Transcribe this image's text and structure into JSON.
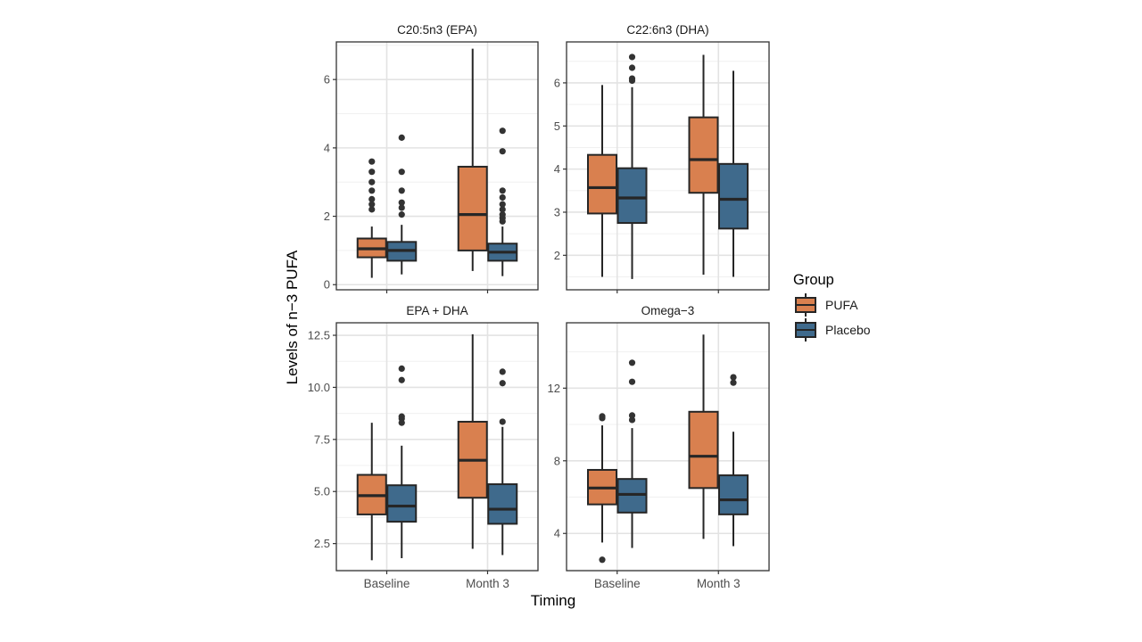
{
  "figure": {
    "xlabel": "Timing",
    "ylabel": "Levels of n−3 PUFA",
    "legend": {
      "title": "Group",
      "placement": "right",
      "items": [
        {
          "label": "PUFA",
          "color": "#d9804f"
        },
        {
          "label": "Placebo",
          "color": "#3f6a8c"
        }
      ]
    }
  },
  "chart_data": [
    {
      "type": "box",
      "title": "C20:5n3 (EPA)",
      "categories": [
        "Baseline",
        "Month 3"
      ],
      "ylim": [
        -0.15,
        7.1
      ],
      "yticks": [
        0,
        2,
        4,
        6
      ],
      "ytick_labels": [
        "0",
        "2",
        "4",
        "6"
      ],
      "series": [
        {
          "name": "PUFA",
          "boxes": [
            {
              "min": 0.2,
              "q1": 0.8,
              "median": 1.05,
              "q3": 1.35,
              "max": 1.7,
              "outliers": [
                2.2,
                2.35,
                2.5,
                2.75,
                3.0,
                3.3,
                3.6
              ]
            },
            {
              "min": 0.4,
              "q1": 1.0,
              "median": 2.05,
              "q3": 3.45,
              "max": 6.9,
              "outliers": []
            }
          ]
        },
        {
          "name": "Placebo",
          "boxes": [
            {
              "min": 0.3,
              "q1": 0.7,
              "median": 1.0,
              "q3": 1.25,
              "max": 1.75,
              "outliers": [
                2.05,
                2.25,
                2.4,
                2.75,
                3.3,
                4.3
              ]
            },
            {
              "min": 0.25,
              "q1": 0.7,
              "median": 0.95,
              "q3": 1.2,
              "max": 1.7,
              "outliers": [
                1.85,
                1.95,
                2.05,
                2.2,
                2.35,
                2.55,
                2.75,
                3.9,
                4.5
              ]
            }
          ]
        }
      ]
    },
    {
      "type": "box",
      "title": "C22:6n3 (DHA)",
      "categories": [
        "Baseline",
        "Month 3"
      ],
      "ylim": [
        1.2,
        6.95
      ],
      "yticks": [
        2,
        3,
        4,
        5,
        6
      ],
      "ytick_labels": [
        "2",
        "3",
        "4",
        "5",
        "6"
      ],
      "series": [
        {
          "name": "PUFA",
          "boxes": [
            {
              "min": 1.5,
              "q1": 2.97,
              "median": 3.57,
              "q3": 4.33,
              "max": 5.95,
              "outliers": []
            },
            {
              "min": 1.55,
              "q1": 3.45,
              "median": 4.22,
              "q3": 5.2,
              "max": 6.65,
              "outliers": []
            }
          ]
        },
        {
          "name": "Placebo",
          "boxes": [
            {
              "min": 1.45,
              "q1": 2.75,
              "median": 3.33,
              "q3": 4.02,
              "max": 5.9,
              "outliers": [
                6.05,
                6.1,
                6.35,
                6.6
              ]
            },
            {
              "min": 1.5,
              "q1": 2.62,
              "median": 3.3,
              "q3": 4.12,
              "max": 6.28,
              "outliers": []
            }
          ]
        }
      ]
    },
    {
      "type": "box",
      "title": "EPA + DHA",
      "categories": [
        "Baseline",
        "Month 3"
      ],
      "ylim": [
        1.2,
        13.1
      ],
      "yticks": [
        2.5,
        5.0,
        7.5,
        10.0,
        12.5
      ],
      "ytick_labels": [
        "2.5",
        "5.0",
        "7.5",
        "10.0",
        "12.5"
      ],
      "series": [
        {
          "name": "PUFA",
          "boxes": [
            {
              "min": 1.7,
              "q1": 3.9,
              "median": 4.8,
              "q3": 5.8,
              "max": 8.3,
              "outliers": []
            },
            {
              "min": 2.25,
              "q1": 4.7,
              "median": 6.5,
              "q3": 8.35,
              "max": 12.55,
              "outliers": []
            }
          ]
        },
        {
          "name": "Placebo",
          "boxes": [
            {
              "min": 1.8,
              "q1": 3.55,
              "median": 4.3,
              "q3": 5.3,
              "max": 7.2,
              "outliers": [
                8.3,
                8.5,
                8.6,
                10.35,
                10.9
              ]
            },
            {
              "min": 1.95,
              "q1": 3.45,
              "median": 4.15,
              "q3": 5.35,
              "max": 8.1,
              "outliers": [
                8.35,
                10.2,
                10.75
              ]
            }
          ]
        }
      ]
    },
    {
      "type": "box",
      "title": "Omega−3",
      "categories": [
        "Baseline",
        "Month 3"
      ],
      "ylim": [
        1.95,
        15.6
      ],
      "yticks": [
        4,
        8,
        12
      ],
      "ytick_labels": [
        "4",
        "8",
        "12"
      ],
      "series": [
        {
          "name": "PUFA",
          "boxes": [
            {
              "min": 3.5,
              "q1": 5.6,
              "median": 6.5,
              "q3": 7.5,
              "max": 9.95,
              "outliers": [
                2.55,
                10.35,
                10.45
              ]
            },
            {
              "min": 3.7,
              "q1": 6.5,
              "median": 8.25,
              "q3": 10.7,
              "max": 14.95,
              "outliers": []
            }
          ]
        },
        {
          "name": "Placebo",
          "boxes": [
            {
              "min": 3.2,
              "q1": 5.15,
              "median": 6.15,
              "q3": 7.0,
              "max": 9.8,
              "outliers": [
                10.25,
                10.5,
                12.35,
                13.4
              ]
            },
            {
              "min": 3.3,
              "q1": 5.05,
              "median": 5.85,
              "q3": 7.2,
              "max": 9.6,
              "outliers": [
                12.3,
                12.6
              ]
            }
          ]
        }
      ]
    }
  ]
}
